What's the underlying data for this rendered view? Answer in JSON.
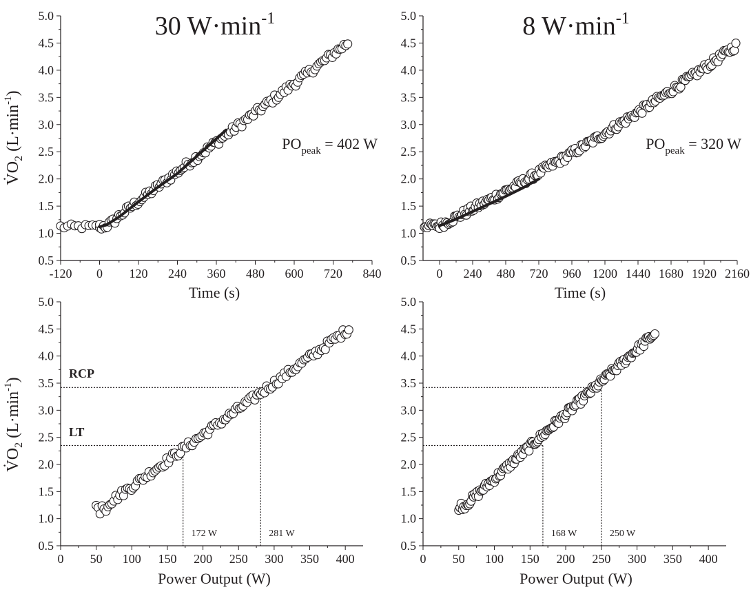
{
  "colors": {
    "ink": "#231f20",
    "marker_fill": "#ffffff",
    "fit_line": "#231f20"
  },
  "chart_data": [
    {
      "type": "scatter",
      "panel": "top-left",
      "title_main": "30 W·min",
      "title_sup": "-1",
      "xlabel": "Time (s)",
      "ylabel_main": "V̇O",
      "ylabel_sub": "2",
      "ylabel_unit": " (L·min",
      "ylabel_sup": "-1",
      "ylabel_close": ")",
      "xlim": [
        -120,
        840
      ],
      "ylim": [
        0.5,
        5.0
      ],
      "xticks": [
        -120,
        0,
        120,
        240,
        360,
        480,
        600,
        720,
        840
      ],
      "yticks": [
        "0.5",
        "1.0",
        "1.5",
        "2.0",
        "2.5",
        "3.0",
        "3.5",
        "4.0",
        "4.5",
        "5.0"
      ],
      "annotation": {
        "main": "PO",
        "sub": "peak",
        "rest": " = 402 W"
      },
      "pre_exercise": {
        "x_start": -120,
        "x_end": 0,
        "y": 1.12
      },
      "points": {
        "x_start": 0,
        "x_end": 765,
        "n": 130,
        "y_start": 1.12,
        "y_end": 4.5,
        "curve": "quadratic-then-linear"
      },
      "fit": {
        "x": [
          0,
          20,
          60,
          120,
          180,
          240,
          300,
          360,
          390
        ],
        "y": [
          1.12,
          1.15,
          1.3,
          1.58,
          1.85,
          2.1,
          2.42,
          2.74,
          2.9
        ]
      }
    },
    {
      "type": "scatter",
      "panel": "top-right",
      "title_main": "8 W·min",
      "title_sup": "-1",
      "xlabel": "Time (s)",
      "xlim": [
        -120,
        2160
      ],
      "ylim": [
        0.5,
        5.0
      ],
      "xticks": [
        0,
        240,
        480,
        720,
        960,
        1200,
        1440,
        1680,
        1920,
        2160
      ],
      "yticks": [
        "0.5",
        "1.0",
        "1.5",
        "2.0",
        "2.5",
        "3.0",
        "3.5",
        "4.0",
        "4.5",
        "5.0"
      ],
      "annotation": {
        "main": "PO",
        "sub": "peak",
        "rest": " = 320 W"
      },
      "pre_exercise": {
        "x_start": -110,
        "x_end": 0,
        "y": 1.14
      },
      "points": {
        "x_start": 0,
        "x_end": 2150,
        "n": 200,
        "y_start": 1.14,
        "y_end": 4.45,
        "curve": "slightly-convex"
      },
      "fit": {
        "x": [
          0,
          120,
          240,
          360,
          480,
          600,
          720
        ],
        "y": [
          1.14,
          1.26,
          1.4,
          1.54,
          1.68,
          1.83,
          2.0
        ]
      }
    },
    {
      "type": "scatter",
      "panel": "bottom-left",
      "xlabel": "Power Output (W)",
      "ylabel_main": "V̇O",
      "ylabel_sub": "2",
      "ylabel_unit": " (L·min",
      "ylabel_sup": "-1",
      "ylabel_close": ")",
      "xlim": [
        0,
        425
      ],
      "ylim": [
        0.5,
        5.0
      ],
      "xticks": [
        0,
        50,
        100,
        150,
        200,
        250,
        300,
        350,
        400
      ],
      "yticks": [
        "0.5",
        "1.0",
        "1.5",
        "2.0",
        "2.5",
        "3.0",
        "3.5",
        "4.0",
        "4.5",
        "5.0"
      ],
      "thresholds": [
        {
          "label": "LT",
          "y": 2.35,
          "x": 172,
          "x_label": "172 W"
        },
        {
          "label": "RCP",
          "y": 3.42,
          "x": 281,
          "x_label": "281 W"
        }
      ],
      "points": {
        "x_start": 50,
        "x_end": 405,
        "n": 130,
        "y_start": 1.12,
        "y_end": 4.5
      }
    },
    {
      "type": "scatter",
      "panel": "bottom-right",
      "xlabel": "Power Output (W)",
      "xlim": [
        0,
        425
      ],
      "ylim": [
        0.5,
        5.0
      ],
      "xticks": [
        0,
        50,
        100,
        150,
        200,
        250,
        300,
        350,
        400
      ],
      "yticks": [
        "0.5",
        "1.0",
        "1.5",
        "2.0",
        "2.5",
        "3.0",
        "3.5",
        "4.0",
        "4.5",
        "5.0"
      ],
      "thresholds": [
        {
          "label": "",
          "y": 2.35,
          "x": 168,
          "x_label": "168 W"
        },
        {
          "label": "",
          "y": 3.42,
          "x": 250,
          "x_label": "250 W"
        }
      ],
      "points": {
        "x_start": 50,
        "x_end": 325,
        "n": 160,
        "y_start": 1.14,
        "y_end": 4.42
      }
    }
  ]
}
